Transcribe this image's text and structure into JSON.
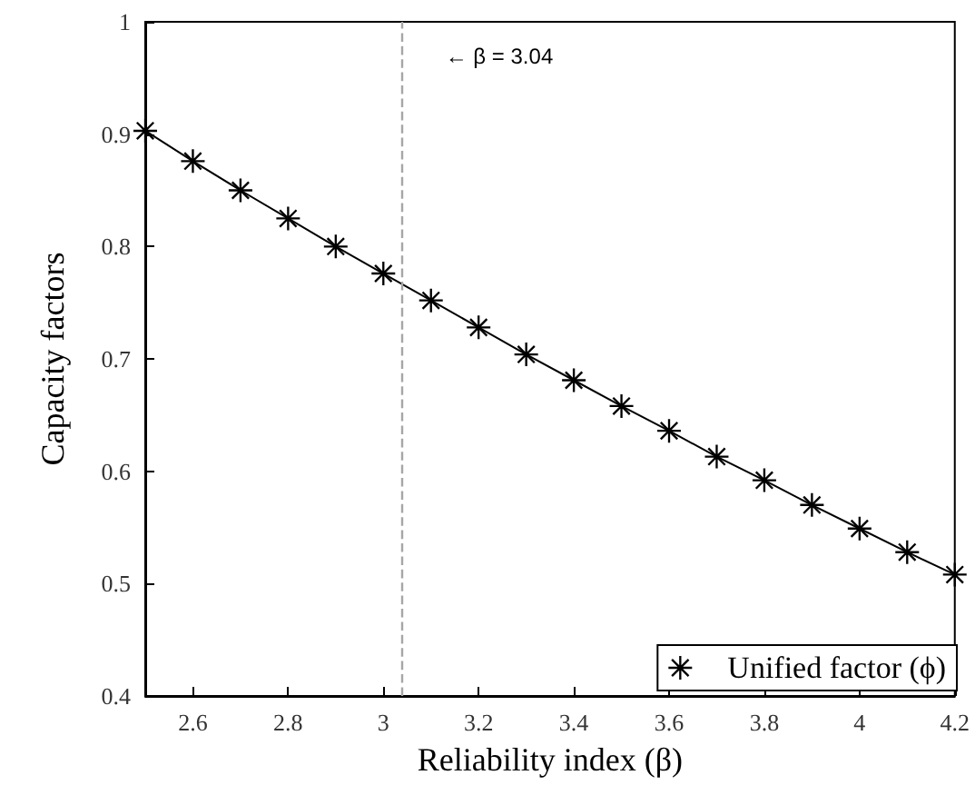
{
  "chart_data": {
    "type": "line",
    "xlabel": "Reliability index (β)",
    "ylabel": "Capacity factors",
    "x": [
      2.5,
      2.6,
      2.7,
      2.8,
      2.9,
      3.0,
      3.1,
      3.2,
      3.3,
      3.4,
      3.5,
      3.6,
      3.7,
      3.8,
      3.9,
      4.0,
      4.1,
      4.2
    ],
    "series": [
      {
        "name": "Unified factor (ϕ)",
        "color": "#000000",
        "values": [
          0.903,
          0.876,
          0.85,
          0.825,
          0.8,
          0.776,
          0.752,
          0.728,
          0.704,
          0.681,
          0.658,
          0.636,
          0.613,
          0.592,
          0.57,
          0.549,
          0.528,
          0.508
        ]
      }
    ],
    "xlim": [
      2.5,
      4.2
    ],
    "xticks": [
      2.6,
      2.8,
      3,
      3.2,
      3.4,
      3.6,
      3.8,
      4,
      4.2
    ],
    "ylim": [
      0.4,
      1
    ],
    "yticks": [
      0.4,
      0.5,
      0.6,
      0.7,
      0.8,
      0.9,
      1
    ],
    "ref_lines": [
      {
        "axis": "x",
        "value": 3.04,
        "label": "← β = 3.04",
        "color": "#a6a6a6",
        "line_style": "dashed"
      }
    ],
    "marker": "star",
    "line_style": "solid",
    "grid": false,
    "legend": "bottom right"
  }
}
